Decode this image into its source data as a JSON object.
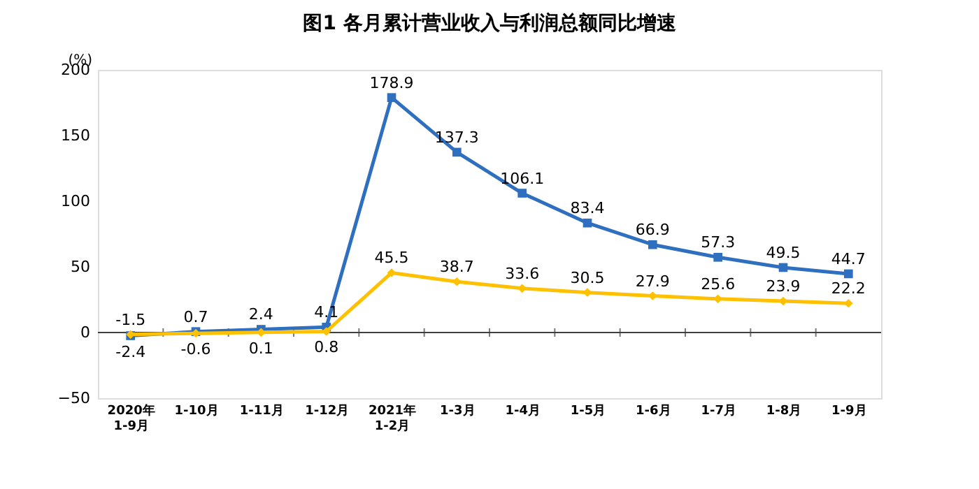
{
  "chart_data": {
    "type": "line",
    "title": "图1  各月累计营业收入与利润总额同比增速",
    "ylabel": "(%)",
    "categories": [
      "2020年\n1-9月",
      "1-10月",
      "1-11月",
      "1-12月",
      "2021年\n1-2月",
      "1-3月",
      "1-4月",
      "1-5月",
      "1-6月",
      "1-7月",
      "1-8月",
      "1-9月"
    ],
    "series": [
      {
        "color": "#2e6fc0",
        "marker": "square",
        "values": [
          -2.4,
          0.7,
          2.4,
          4.1,
          178.9,
          137.3,
          106.1,
          83.4,
          66.9,
          57.3,
          49.5,
          44.7
        ]
      },
      {
        "color": "#ffc000",
        "marker": "diamond",
        "values": [
          -1.5,
          -0.6,
          0.1,
          0.8,
          45.5,
          38.7,
          33.6,
          30.5,
          27.9,
          25.6,
          23.9,
          22.2
        ]
      }
    ],
    "ylim": [
      -50,
      200
    ],
    "yticks": [
      -50,
      0,
      50,
      100,
      150,
      200
    ],
    "ref_lines": [
      {
        "axis": "y",
        "value": 0,
        "color": "#404040"
      }
    ],
    "data_labels": true,
    "grid": false,
    "legend": false,
    "line_style": "solid"
  }
}
